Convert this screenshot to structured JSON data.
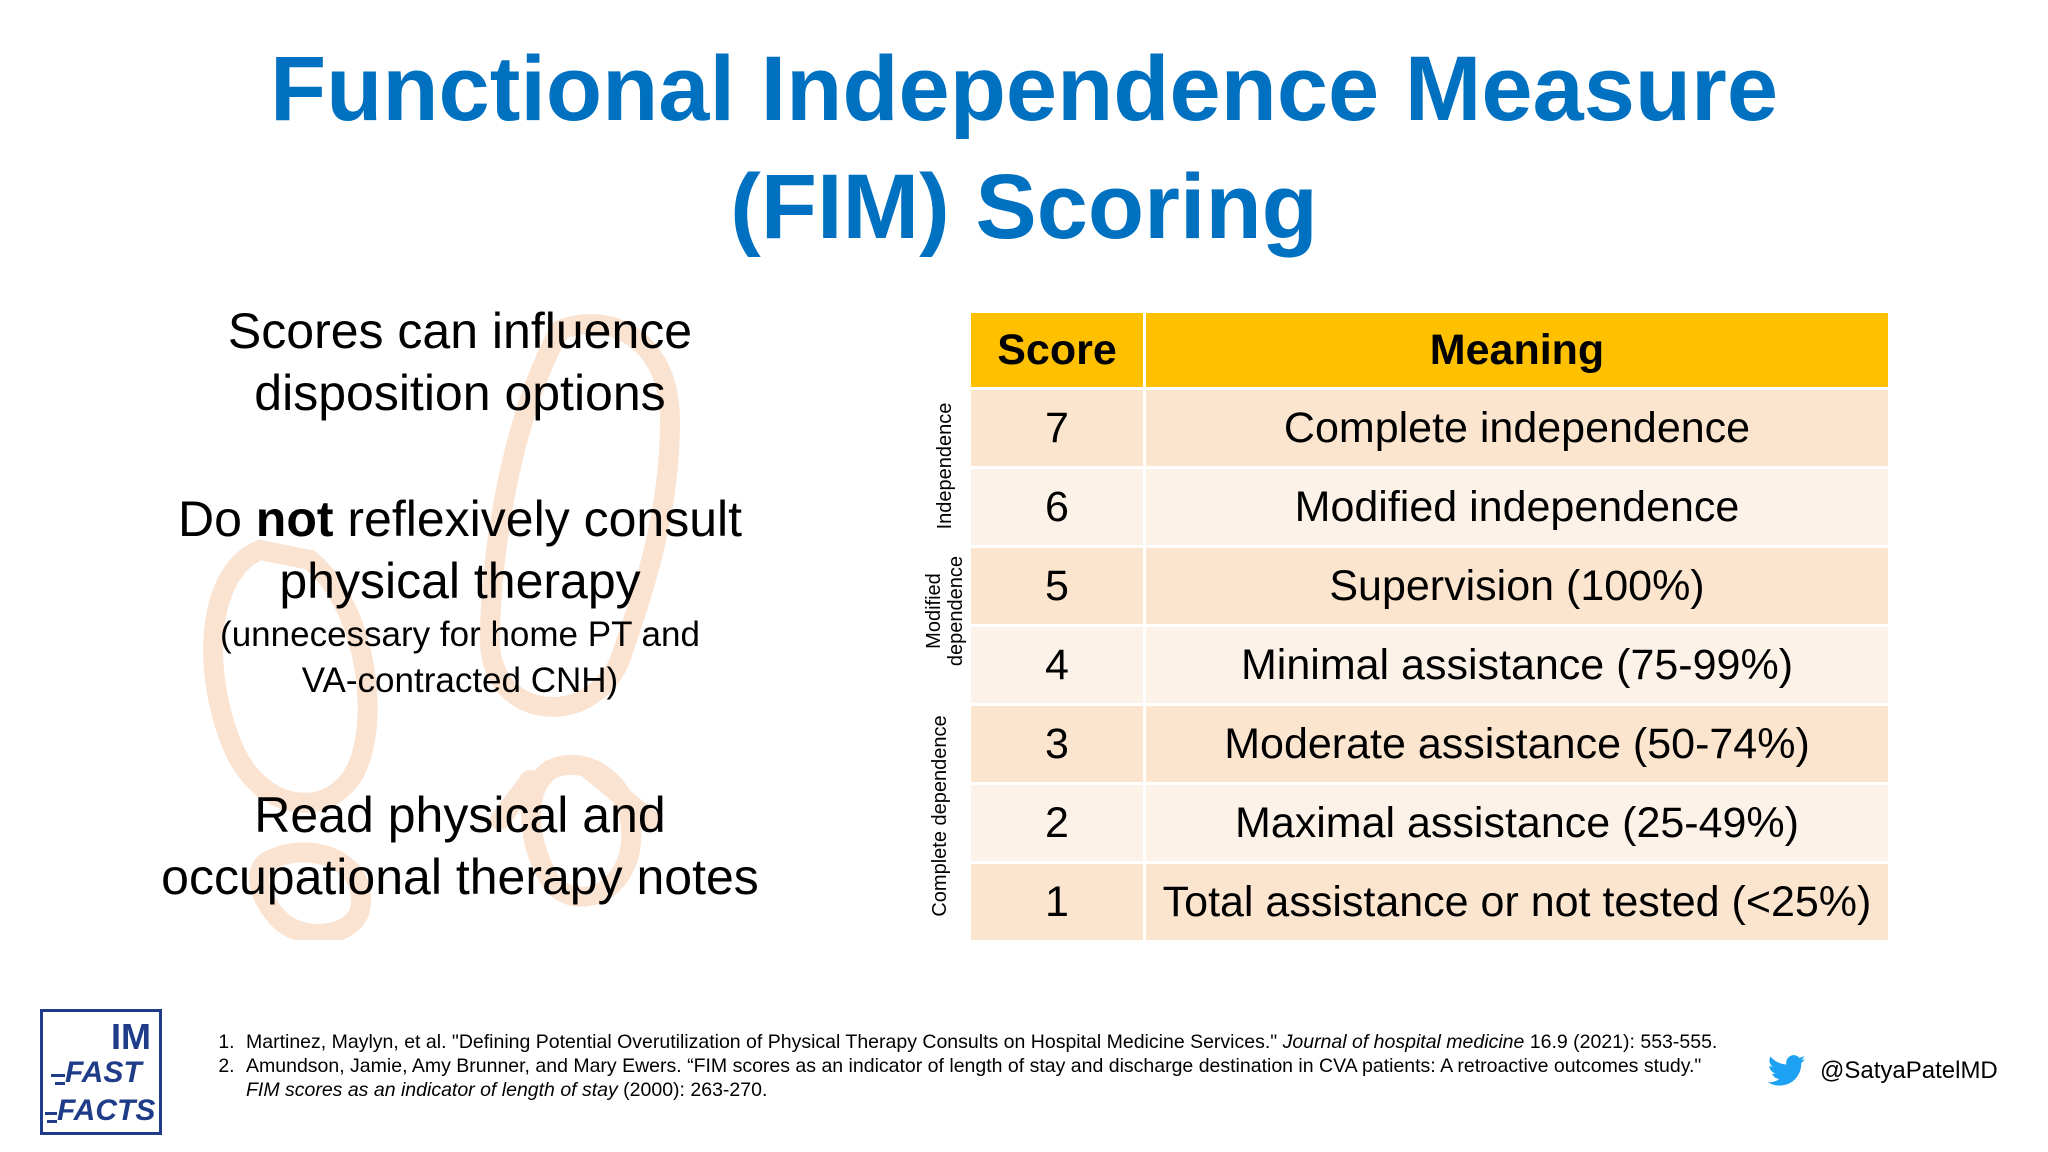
{
  "title": {
    "line1": "Functional Independence Measure",
    "line2": "(FIM) Scoring"
  },
  "left": {
    "point1": {
      "line1": "Scores can influence",
      "line2": "disposition options"
    },
    "point2": {
      "pre": "Do ",
      "bold": "not",
      "post": " reflexively consult",
      "line2": "physical therapy",
      "note1": "(unnecessary for home PT and",
      "note2": "VA-contracted CNH)"
    },
    "point3": {
      "line1": "Read physical and",
      "line2": "occupational therapy notes"
    }
  },
  "table": {
    "headers": {
      "score": "Score",
      "meaning": "Meaning"
    },
    "rows": [
      {
        "score": "7",
        "meaning": "Complete independence"
      },
      {
        "score": "6",
        "meaning": "Modified independence"
      },
      {
        "score": "5",
        "meaning": "Supervision (100%)"
      },
      {
        "score": "4",
        "meaning": "Minimal assistance (75-99%)"
      },
      {
        "score": "3",
        "meaning": "Moderate assistance (50-74%)"
      },
      {
        "score": "2",
        "meaning": "Maximal assistance (25-49%)"
      },
      {
        "score": "1",
        "meaning": "Total assistance or not tested (<25%)"
      }
    ],
    "groups": {
      "independence": "Independence",
      "modified_line1": "Modified",
      "modified_line2": "dependence",
      "complete": "Complete dependence"
    },
    "colors": {
      "header": "#ffc000",
      "row_dark": "#fbe5cf",
      "row_light": "#fdf2e8"
    }
  },
  "logo": {
    "im": "IM",
    "fast": "FAST",
    "facts": "FACTS"
  },
  "references": [
    {
      "pre": "Martinez, Maylyn, et al. \"Defining Potential Overutilization of Physical Therapy Consults on Hospital Medicine Services.\" ",
      "italic": "Journal of hospital medicine",
      "post": " 16.9 (2021): 553-555."
    },
    {
      "pre": "Amundson, Jamie, Amy Brunner, and Mary Ewers. “FIM scores as an indicator of length of stay and discharge destination in CVA patients: A retroactive outcomes study.\" ",
      "italic": "FIM scores as an indicator of length of stay",
      "post": " (2000): 263-270."
    }
  ],
  "twitter": {
    "icon": "twitter-bird-icon",
    "handle": "@SatyaPatelMD",
    "color": "#1da1f2"
  },
  "colors": {
    "title": "#0070c0",
    "logo": "#1f3c88",
    "watermark": "#fbe3d2"
  }
}
